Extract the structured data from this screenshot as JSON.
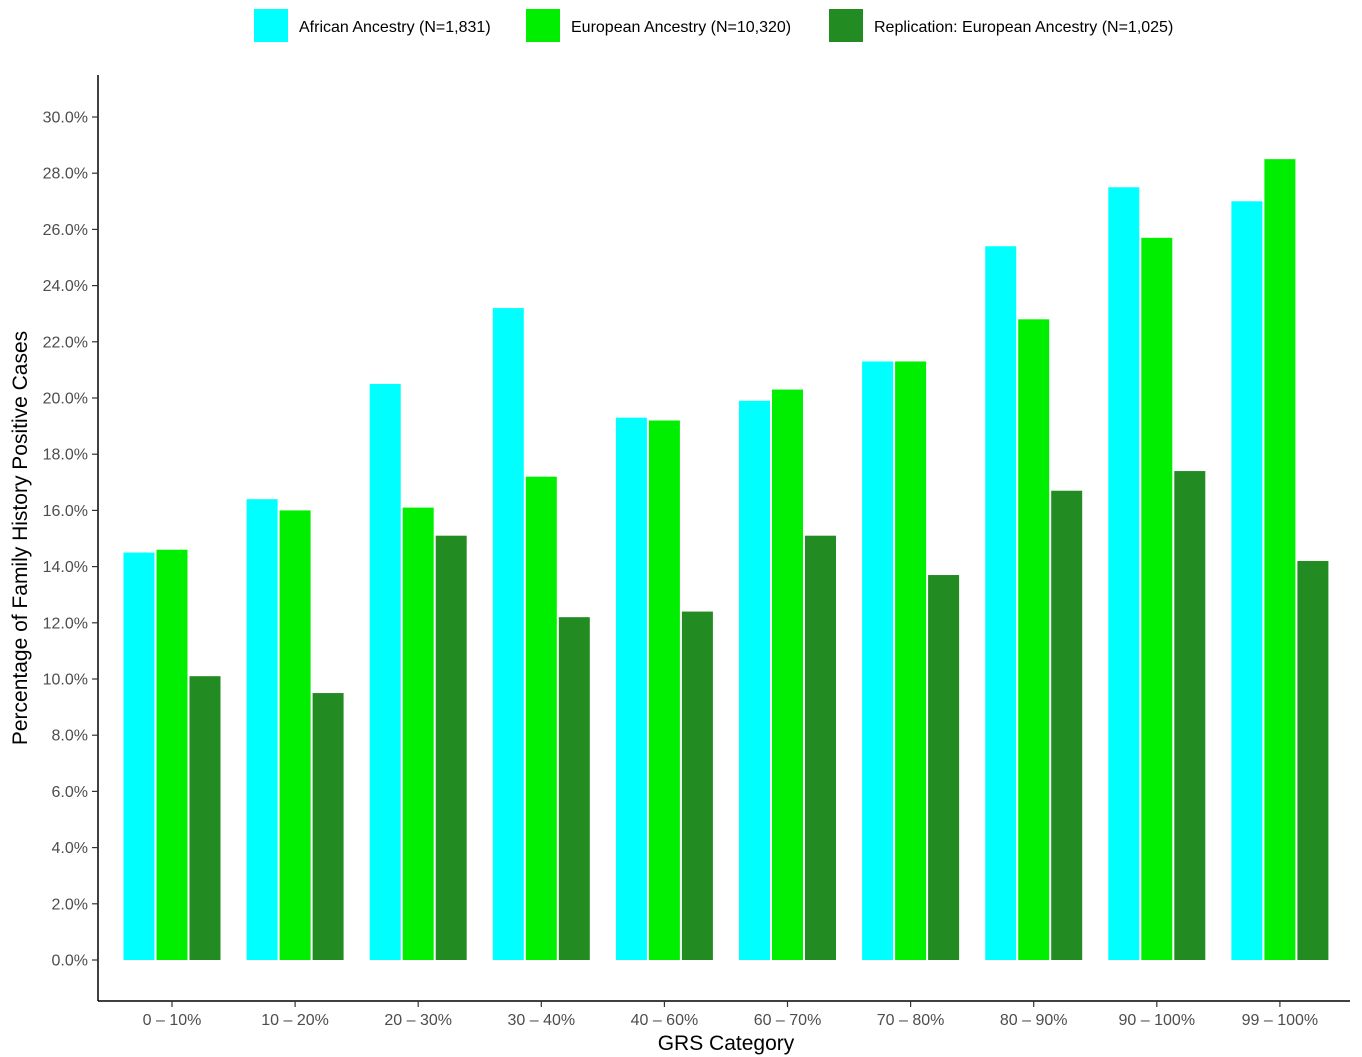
{
  "chart_data": {
    "type": "bar",
    "xlabel": "GRS Category",
    "ylabel": "Percentage of Family History Positive Cases",
    "ylim": [
      0,
      30
    ],
    "ytick_step": 2,
    "ytick_format": "{v}.0%",
    "grid": false,
    "legend_position": "top",
    "categories": [
      "0 – 10%",
      "10 – 20%",
      "20 – 30%",
      "30 – 40%",
      "40 – 60%",
      "60 – 70%",
      "70 – 80%",
      "80 – 90%",
      "90 – 100%",
      "99 – 100%"
    ],
    "series": [
      {
        "name": "African Ancestry (N=1,831)",
        "color": "#00FFFF",
        "values": [
          14.5,
          16.4,
          20.5,
          23.2,
          19.3,
          19.9,
          21.3,
          25.4,
          27.5,
          27.0
        ]
      },
      {
        "name": "European Ancestry (N=10,320)",
        "color": "#00EE00",
        "values": [
          14.6,
          16.0,
          16.1,
          17.2,
          19.2,
          20.3,
          21.3,
          22.8,
          25.7,
          28.5
        ]
      },
      {
        "name": "Replication: European Ancestry (N=1,025)",
        "color": "#228B22",
        "values": [
          10.1,
          9.5,
          15.1,
          12.2,
          12.4,
          15.1,
          13.7,
          16.7,
          17.4,
          14.2
        ]
      }
    ]
  }
}
